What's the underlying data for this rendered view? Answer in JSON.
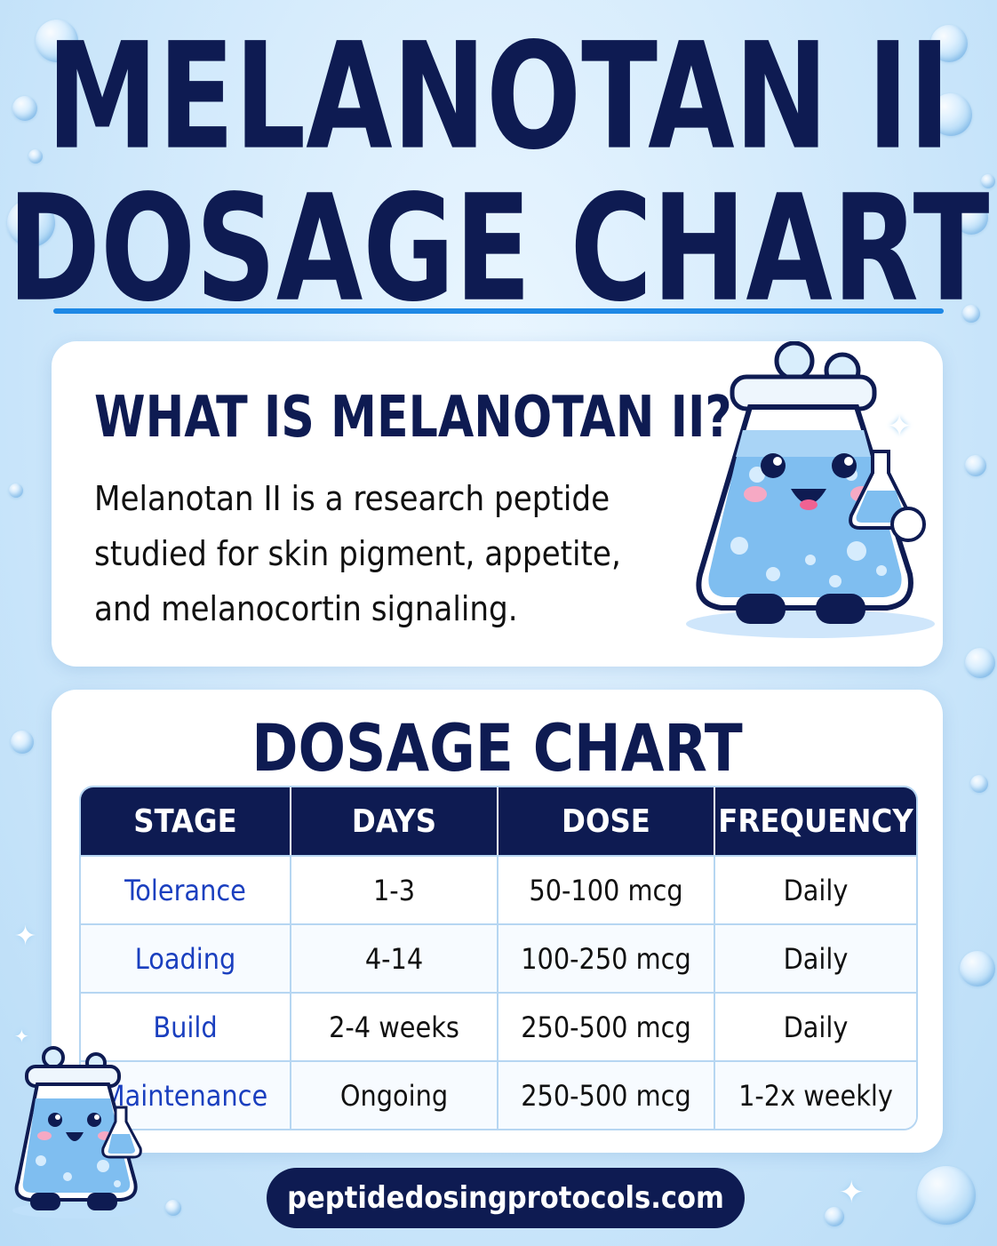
{
  "title": {
    "line1": "MELANOTAN II",
    "line2": "DOSAGE CHART"
  },
  "intro": {
    "heading": "WHAT IS MELANOTAN II?",
    "body": "Melanotan II is a research peptide studied for skin pigment, appetite, and melanocortin signaling."
  },
  "dosage": {
    "heading": "DOSAGE CHART",
    "columns": [
      "STAGE",
      "DAYS",
      "DOSE",
      "FREQUENCY"
    ],
    "rows": [
      [
        "Tolerance",
        "1-3",
        "50-100 mcg",
        "Daily"
      ],
      [
        "Loading",
        "4-14",
        "100-250 mcg",
        "Daily"
      ],
      [
        "Build",
        "2-4 weeks",
        "250-500 mcg",
        "Daily"
      ],
      [
        "Maintenance",
        "Ongoing",
        "250-500 mcg",
        "1-2x weekly"
      ]
    ]
  },
  "footer": {
    "website": "peptidedosingprotocols.com"
  },
  "colors": {
    "navy": "#0e1b52",
    "accent_blue": "#1e88e5",
    "stage_text": "#1a3fbf",
    "background": "#cfe8fb"
  },
  "icons": [
    "flask-mascot-icon",
    "small-flask-mascot-icon",
    "bubble-icon",
    "sparkle-icon"
  ]
}
